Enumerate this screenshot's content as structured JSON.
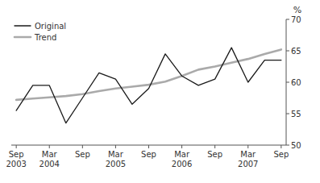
{
  "chart_data": {
    "type": "line",
    "categories": [
      "Sep\n2003",
      null,
      "Mar\n2004",
      null,
      "Sep",
      null,
      "Mar\n2005",
      null,
      "Sep",
      null,
      "Mar\n2006",
      null,
      "Sep",
      null,
      "Mar\n2007",
      null,
      "Sep"
    ],
    "series": [
      {
        "name": "Original",
        "color": "#1a1a1a",
        "values": [
          55.5,
          59.5,
          59.5,
          53.5,
          57.5,
          61.5,
          60.5,
          56.5,
          59.0,
          64.5,
          61.0,
          59.5,
          60.5,
          65.5,
          60.0,
          63.5,
          63.5
        ]
      },
      {
        "name": "Trend",
        "color": "#aaaaaa",
        "values": [
          57.2,
          57.4,
          57.6,
          57.8,
          58.1,
          58.6,
          59.0,
          59.3,
          59.6,
          60.1,
          61.0,
          62.0,
          62.5,
          63.1,
          63.7,
          64.5,
          65.2
        ]
      }
    ],
    "ylim": [
      50,
      70
    ],
    "yticks": [
      50,
      55,
      60,
      65,
      70
    ],
    "y_label": "%",
    "grid": false,
    "legend": "upper left"
  }
}
